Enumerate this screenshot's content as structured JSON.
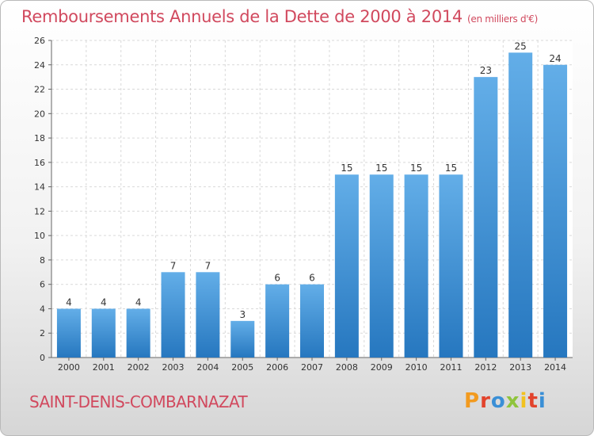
{
  "chart_data": {
    "type": "bar",
    "title": "Remboursements Annuels de la Dette de 2000 à 2014",
    "subtitle": "(en milliers d'€)",
    "categories": [
      "2000",
      "2001",
      "2002",
      "2003",
      "2004",
      "2005",
      "2006",
      "2007",
      "2008",
      "2009",
      "2010",
      "2011",
      "2012",
      "2013",
      "2014"
    ],
    "values": [
      4,
      4,
      4,
      7,
      7,
      3,
      6,
      6,
      15,
      15,
      15,
      15,
      23,
      25,
      24
    ],
    "ylim": [
      0,
      26
    ],
    "yticks": [
      0,
      2,
      4,
      6,
      8,
      10,
      12,
      14,
      16,
      18,
      20,
      22,
      24,
      26
    ],
    "grid": true,
    "bar_color": "#3a8fd6",
    "bar_color_light": "#63aee8",
    "bar_color_dark": "#2677bf"
  },
  "footer": {
    "commune": "SAINT-DENIS-COMBARNAZAT",
    "logo_text": "Proxiti",
    "logo_colors": [
      "#f29a1f",
      "#e2432c",
      "#3a8fd6",
      "#8fc43c",
      "#f2c21f",
      "#e2432c",
      "#3a8fd6"
    ]
  },
  "colors": {
    "title": "#d1495e"
  }
}
